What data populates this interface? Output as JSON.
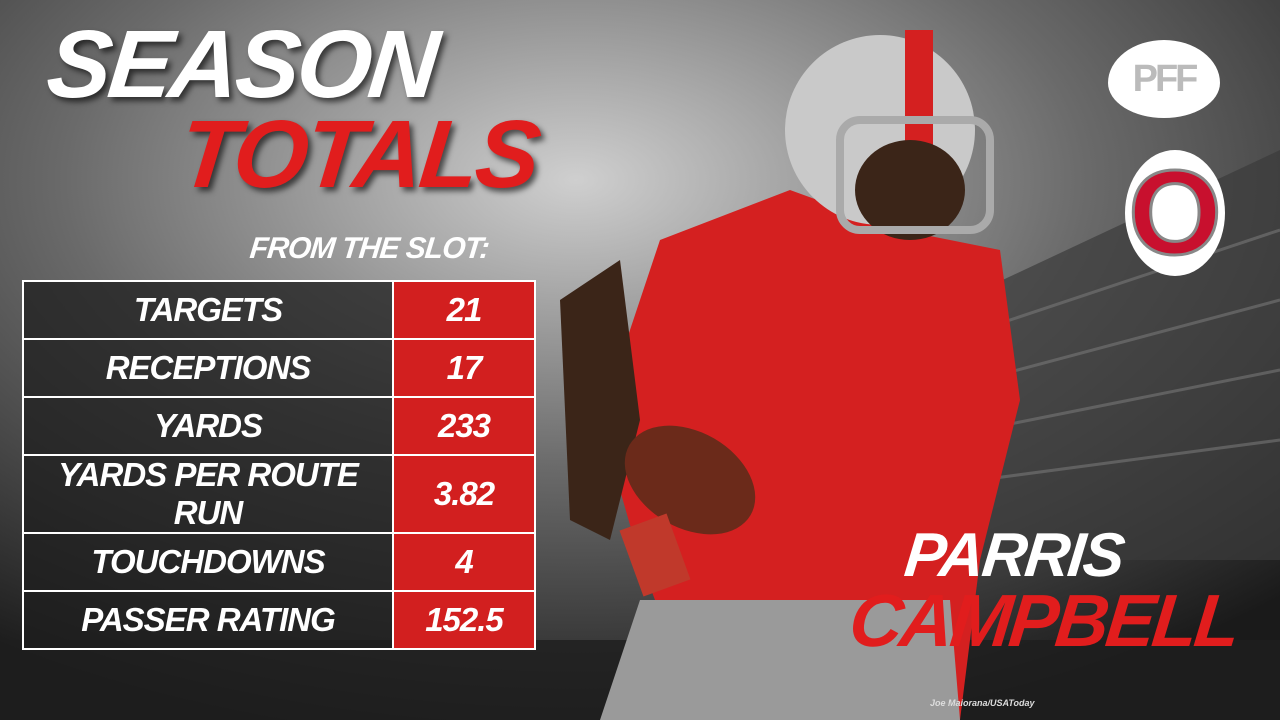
{
  "header": {
    "title_line1": "SEASON",
    "title_line2": "TOTALS",
    "subtitle": "FROM THE SLOT:"
  },
  "table": {
    "rows": [
      [
        "TARGETS",
        21
      ],
      [
        "RECEPTIONS",
        17
      ],
      [
        "YARDS",
        233
      ],
      [
        "YARDS PER ROUTE RUN",
        3.82
      ],
      [
        "TOUCHDOWNS",
        4
      ],
      [
        "PASSER RATING",
        152.5
      ]
    ]
  },
  "player": {
    "first_name": "PARRIS",
    "last_name": "CAMPBELL"
  },
  "logos": {
    "brand": "PFF",
    "team": "O"
  },
  "credit": "Joe Maiorana/USAToday"
}
